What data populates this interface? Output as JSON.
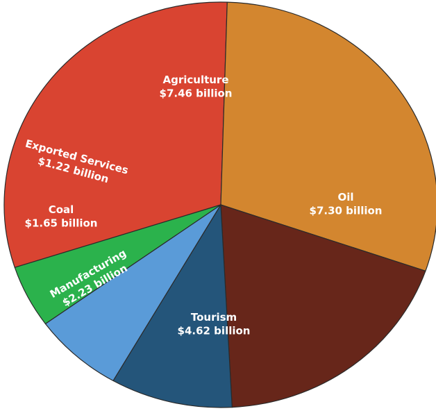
{
  "chart_data": {
    "type": "pie",
    "title": "",
    "unit": "billion USD",
    "slices": [
      {
        "label": "Agriculture",
        "value": 7.46,
        "value_label": "$7.46 billion",
        "color": "#d94431"
      },
      {
        "label": "Oil",
        "value": 7.3,
        "value_label": "$7.30 billion",
        "color": "#d3862f"
      },
      {
        "label": "Tourism",
        "value": 4.62,
        "value_label": "$4.62 billion",
        "color": "#67261a"
      },
      {
        "label": "Manufacturing",
        "value": 2.23,
        "value_label": "$2.23 billion",
        "color": "#24557a"
      },
      {
        "label": "Coal",
        "value": 1.65,
        "value_label": "$1.65 billion",
        "color": "#5a9bd8"
      },
      {
        "label": "Exported Services",
        "value": 1.22,
        "value_label": "$1.22 billion",
        "color": "#2bb24c"
      }
    ],
    "legend": "none",
    "labels_inside": true
  }
}
